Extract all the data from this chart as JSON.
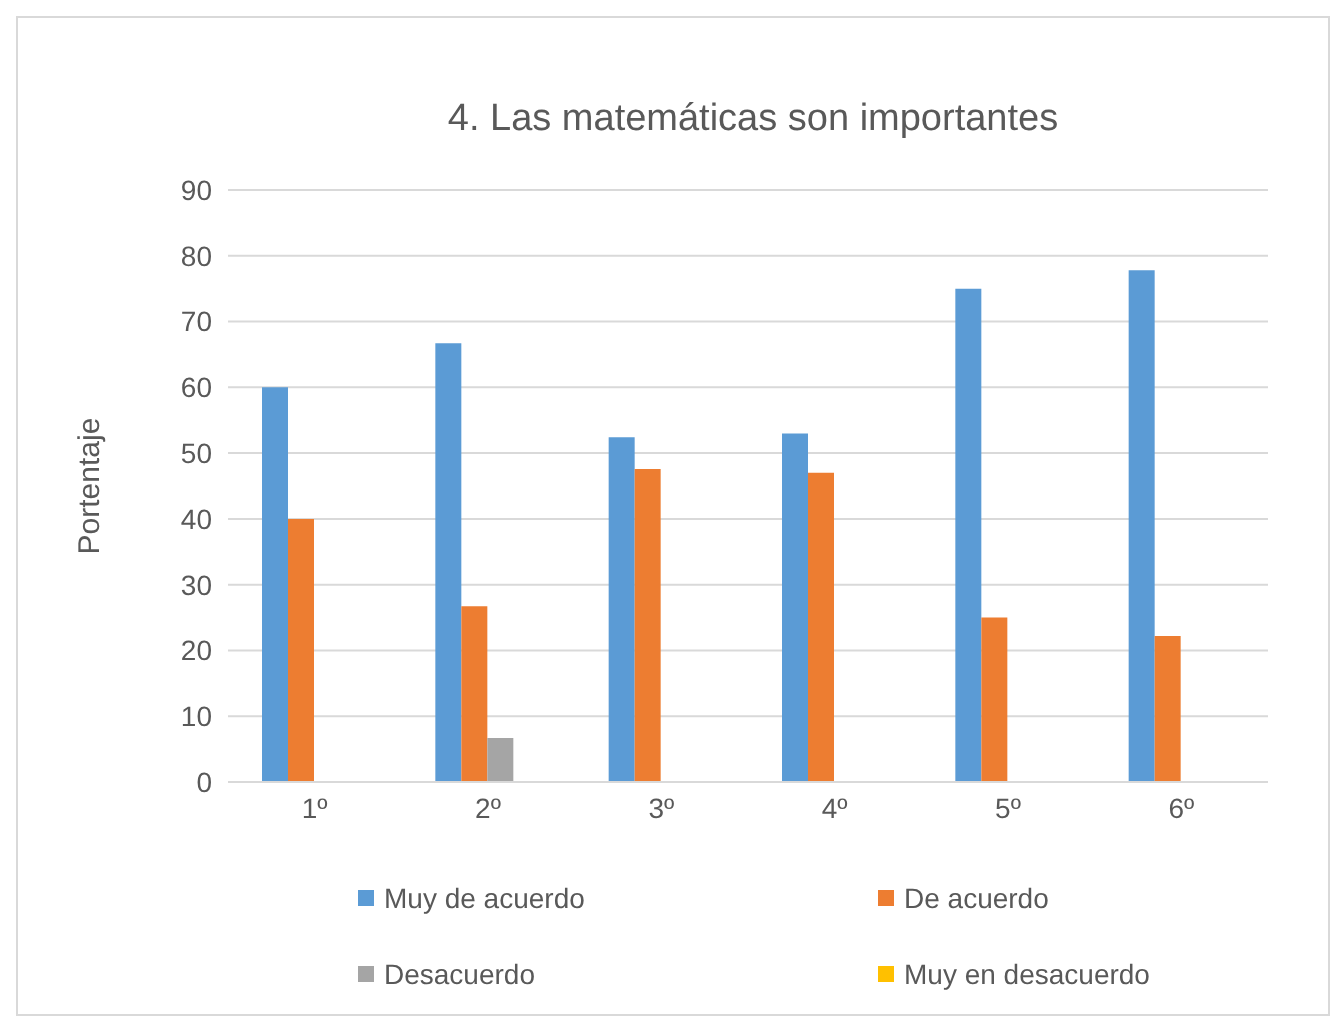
{
  "chart_data": {
    "type": "bar",
    "title": "4. Las matemáticas son importantes",
    "ylabel": "Portentaje",
    "categories": [
      "1º",
      "2º",
      "3º",
      "4º",
      "5º",
      "6º"
    ],
    "series": [
      {
        "name": "Muy de acuerdo",
        "color": "#5b9bd5",
        "values": [
          60,
          66.7,
          52.4,
          53,
          75,
          77.8
        ]
      },
      {
        "name": "De acuerdo",
        "color": "#ed7d31",
        "values": [
          40,
          26.7,
          47.6,
          47,
          25,
          22.2
        ]
      },
      {
        "name": "Desacuerdo",
        "color": "#a5a5a5",
        "values": [
          0,
          6.7,
          0,
          0,
          0,
          0
        ]
      },
      {
        "name": "Muy en desacuerdo",
        "color": "#ffc000",
        "values": [
          0,
          0,
          0,
          0,
          0,
          0
        ]
      }
    ],
    "ylim": [
      0,
      90
    ],
    "yticks": [
      0,
      10,
      20,
      30,
      40,
      50,
      60,
      70,
      80,
      90
    ],
    "grid": "y",
    "legend": "bottom"
  }
}
